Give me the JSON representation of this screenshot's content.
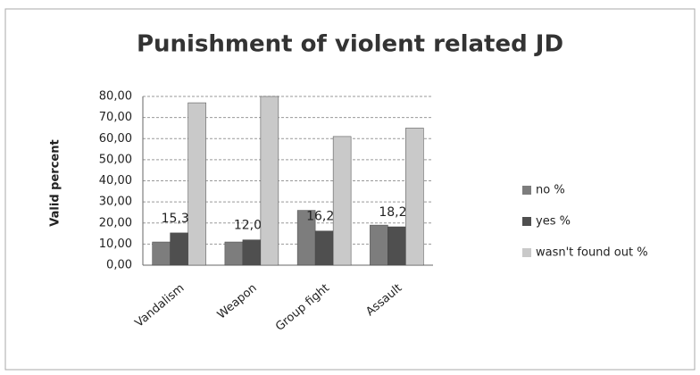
{
  "chart_data": {
    "type": "bar",
    "title": "Punishment of violent related JD",
    "y_label": "Valid percent",
    "categories": [
      "Vandalism",
      "Weapon",
      "Group fight",
      "Assault"
    ],
    "series": [
      {
        "name": "no %",
        "color": "#7d7d7d",
        "values": [
          11,
          11,
          26,
          19
        ]
      },
      {
        "name": "yes %",
        "color": "#4f4f4f",
        "values": [
          15.3,
          12,
          16.2,
          18.2
        ],
        "value_labels": [
          "15,30",
          "12,00",
          "16,20",
          "18,20"
        ]
      },
      {
        "name": "wasn't found out %",
        "color": "#c9c9c9",
        "values": [
          77,
          80,
          61,
          65
        ]
      }
    ],
    "ylim": [
      0,
      80
    ],
    "yticks": [
      {
        "value": 0,
        "label": "0,00"
      },
      {
        "value": 10,
        "label": "10,00"
      },
      {
        "value": 20,
        "label": "20,00"
      },
      {
        "value": 30,
        "label": "30,00"
      },
      {
        "value": 40,
        "label": "40,00"
      },
      {
        "value": 50,
        "label": "50,00"
      },
      {
        "value": 60,
        "label": "60,00"
      },
      {
        "value": 70,
        "label": "70,00"
      },
      {
        "value": 80,
        "label": "80,00"
      }
    ],
    "grid": true,
    "legend": "right"
  }
}
